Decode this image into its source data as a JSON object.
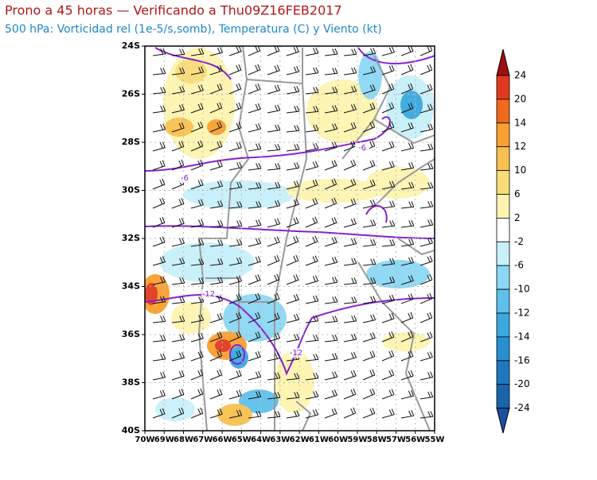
{
  "header": {
    "title": "Prono a 45 horas — Verificando a Thu09Z16FEB2017",
    "subtitle": "500 hPa: Vorticidad rel (1e-5/s,somb), Temperatura (C) y Viento (kt)"
  },
  "map": {
    "lat_labels": [
      "24S",
      "26S",
      "28S",
      "30S",
      "32S",
      "34S",
      "36S",
      "38S",
      "40S"
    ],
    "lon_labels": [
      "70W",
      "69W",
      "68W",
      "67W",
      "66W",
      "65W",
      "64W",
      "63W",
      "62W",
      "61W",
      "60W",
      "59W",
      "58W",
      "57W",
      "56W",
      "55W"
    ],
    "contour_labels": [
      "-6",
      "-6",
      "-12",
      "-12"
    ]
  },
  "colorbar": {
    "labels": [
      24,
      20,
      14,
      12,
      10,
      6,
      2,
      -2,
      -6,
      -10,
      -12,
      -14,
      -16,
      -20,
      -24
    ]
  }
}
